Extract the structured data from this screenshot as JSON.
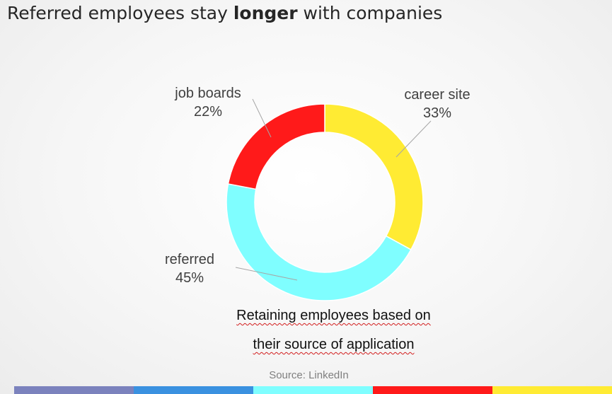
{
  "title": {
    "prefix": "Referred employees stay ",
    "emphasis": "longer",
    "suffix": " with companies"
  },
  "chart_data": {
    "type": "pie",
    "donut": true,
    "slices": [
      {
        "label": "career site",
        "value": 33,
        "value_label": "33%",
        "color": "#ffeb33"
      },
      {
        "label": "referred",
        "value": 45,
        "value_label": "45%",
        "color": "#7ffeff"
      },
      {
        "label": "job boards",
        "value": 22,
        "value_label": "22%",
        "color": "#ff1a1a"
      }
    ],
    "caption_line1": "Retaining employees based on",
    "caption_line2": "their source of application",
    "source": "Source: LinkedIn"
  },
  "footer_colors": [
    "#7b82bd",
    "#3a91e0",
    "#7ffeff",
    "#ff1a1a",
    "#ffeb33"
  ]
}
